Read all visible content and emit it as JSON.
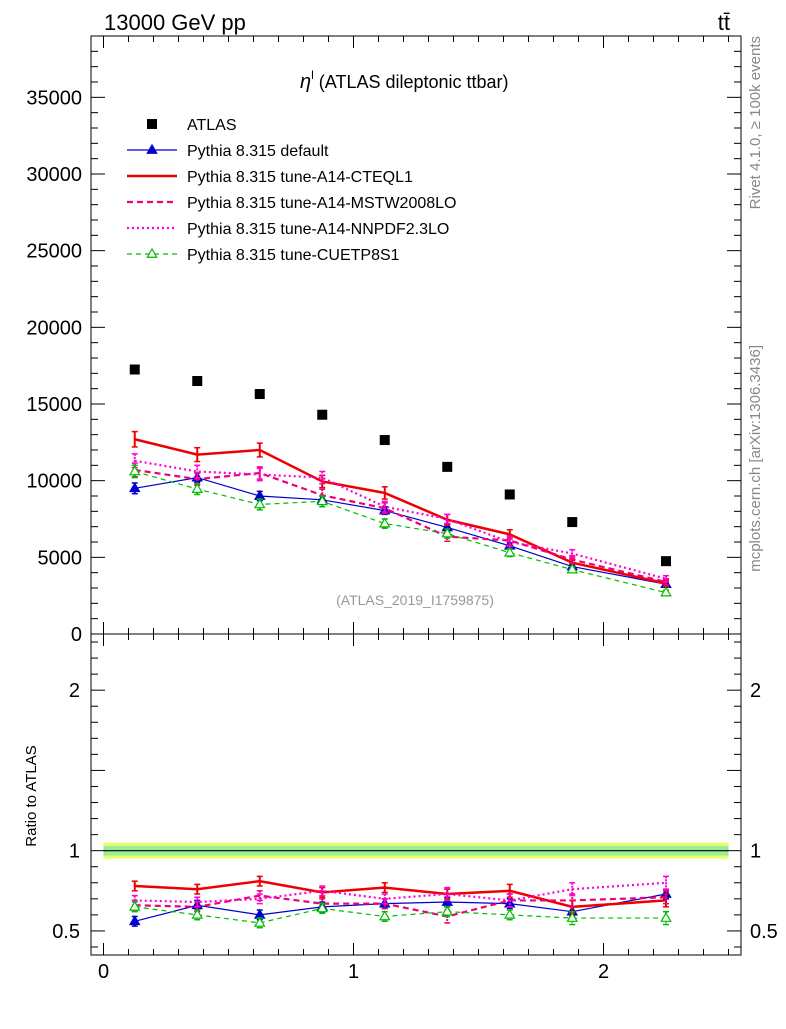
{
  "header": {
    "left": "13000 GeV pp",
    "right": "tt̄"
  },
  "side_labels": {
    "rivet": "Rivet 4.1.0, ≥ 100k events",
    "mcplots": "mcplots.cern.ch [arXiv:1306.3436]"
  },
  "colors": {
    "ATLAS": "#000000",
    "default": "#0000cc",
    "cteql1": "#ee0000",
    "mstw": "#ee0077",
    "nnpdf": "#ff00dd",
    "cuetp": "#00bb00",
    "band_outer": "#eeff66",
    "band_inner": "#99ee99"
  },
  "chart_data": {
    "type": "line",
    "title": "η",
    "title_sup": "l",
    "title_rest": " (ATLAS dileptonic ttbar)",
    "analysis_id": "(ATLAS_2019_I1759875)",
    "xlabel": "",
    "ylabel": "",
    "ratio_ylabel": "Ratio to ATLAS",
    "xlim": [
      -0.05,
      2.55
    ],
    "ylim": [
      0,
      39000
    ],
    "ratio_ylim": [
      0.35,
      2.35
    ],
    "x_ticks": [
      0,
      1,
      2
    ],
    "x_tick_labels": [
      "0",
      "1",
      "2"
    ],
    "y_ticks": [
      0,
      5000,
      10000,
      15000,
      20000,
      25000,
      30000,
      35000
    ],
    "y_tick_labels": [
      "0",
      "5000",
      "10000",
      "15000",
      "20000",
      "25000",
      "30000",
      "35000"
    ],
    "ratio_ticks": [
      0.5,
      1,
      2
    ],
    "ratio_tick_labels": [
      "0.5",
      "1",
      "2"
    ],
    "x": [
      0.125,
      0.375,
      0.625,
      0.875,
      1.125,
      1.375,
      1.625,
      1.875,
      2.25
    ],
    "bin_edges": [
      0,
      0.25,
      0.5,
      0.75,
      1.0,
      1.25,
      1.5,
      1.75,
      2.0,
      2.5
    ],
    "data": {
      "name": "ATLAS",
      "values": [
        17250,
        16500,
        15650,
        14300,
        12650,
        10900,
        9100,
        7300,
        4750
      ]
    },
    "series": [
      {
        "name": "Pythia 8.315 default",
        "key": "default",
        "values": [
          9500,
          10200,
          9000,
          8750,
          8050,
          6950,
          5750,
          4400,
          3250
        ],
        "errors": [
          350,
          300,
          300,
          250,
          250,
          250,
          200,
          150,
          150
        ],
        "ratio": [
          0.56,
          0.66,
          0.6,
          0.65,
          0.67,
          0.68,
          0.67,
          0.62,
          0.73
        ],
        "ratio_errors": [
          0.03,
          0.03,
          0.03,
          0.03,
          0.03,
          0.03,
          0.03,
          0.03,
          0.03
        ]
      },
      {
        "name": "Pythia 8.315 tune-A14-CTEQL1",
        "key": "cteql1",
        "values": [
          12700,
          11700,
          12000,
          9950,
          9200,
          7450,
          6500,
          4650,
          3300
        ],
        "errors": [
          500,
          450,
          450,
          400,
          400,
          350,
          300,
          250,
          200
        ],
        "ratio": [
          0.78,
          0.76,
          0.81,
          0.74,
          0.77,
          0.73,
          0.75,
          0.65,
          0.69
        ],
        "ratio_errors": [
          0.03,
          0.03,
          0.03,
          0.03,
          0.03,
          0.03,
          0.04,
          0.04,
          0.04
        ]
      },
      {
        "name": "Pythia 8.315 tune-A14-MSTW2008LO",
        "key": "mstw",
        "values": [
          10700,
          10100,
          10500,
          9050,
          8200,
          6350,
          6100,
          4850,
          3400
        ],
        "errors": [
          450,
          400,
          400,
          400,
          350,
          300,
          300,
          250,
          200
        ],
        "ratio": [
          0.66,
          0.65,
          0.72,
          0.67,
          0.67,
          0.59,
          0.69,
          0.69,
          0.71
        ],
        "ratio_errors": [
          0.03,
          0.03,
          0.03,
          0.03,
          0.03,
          0.04,
          0.04,
          0.04,
          0.04
        ]
      },
      {
        "name": "Pythia 8.315 tune-A14-NNPDF2.3LO",
        "key": "nnpdf",
        "values": [
          11300,
          10600,
          10400,
          10200,
          8300,
          7500,
          6000,
          5250,
          3600
        ],
        "errors": [
          450,
          400,
          400,
          400,
          350,
          300,
          300,
          250,
          200
        ],
        "ratio": [
          0.69,
          0.68,
          0.7,
          0.75,
          0.7,
          0.73,
          0.69,
          0.76,
          0.8
        ],
        "ratio_errors": [
          0.03,
          0.03,
          0.03,
          0.03,
          0.03,
          0.04,
          0.04,
          0.04,
          0.04
        ]
      },
      {
        "name": "Pythia 8.315 tune-CUETP8S1",
        "key": "cuetp",
        "values": [
          10600,
          9450,
          8450,
          8650,
          7200,
          6550,
          5300,
          4200,
          2700
        ],
        "errors": [
          400,
          350,
          350,
          350,
          300,
          300,
          250,
          200,
          150
        ],
        "ratio": [
          0.65,
          0.6,
          0.55,
          0.64,
          0.59,
          0.62,
          0.6,
          0.58,
          0.58
        ],
        "ratio_errors": [
          0.03,
          0.03,
          0.03,
          0.03,
          0.03,
          0.03,
          0.03,
          0.04,
          0.04
        ]
      }
    ],
    "ratio_band": {
      "outer": [
        0.95,
        1.05
      ],
      "inner": [
        0.97,
        1.03
      ]
    }
  }
}
